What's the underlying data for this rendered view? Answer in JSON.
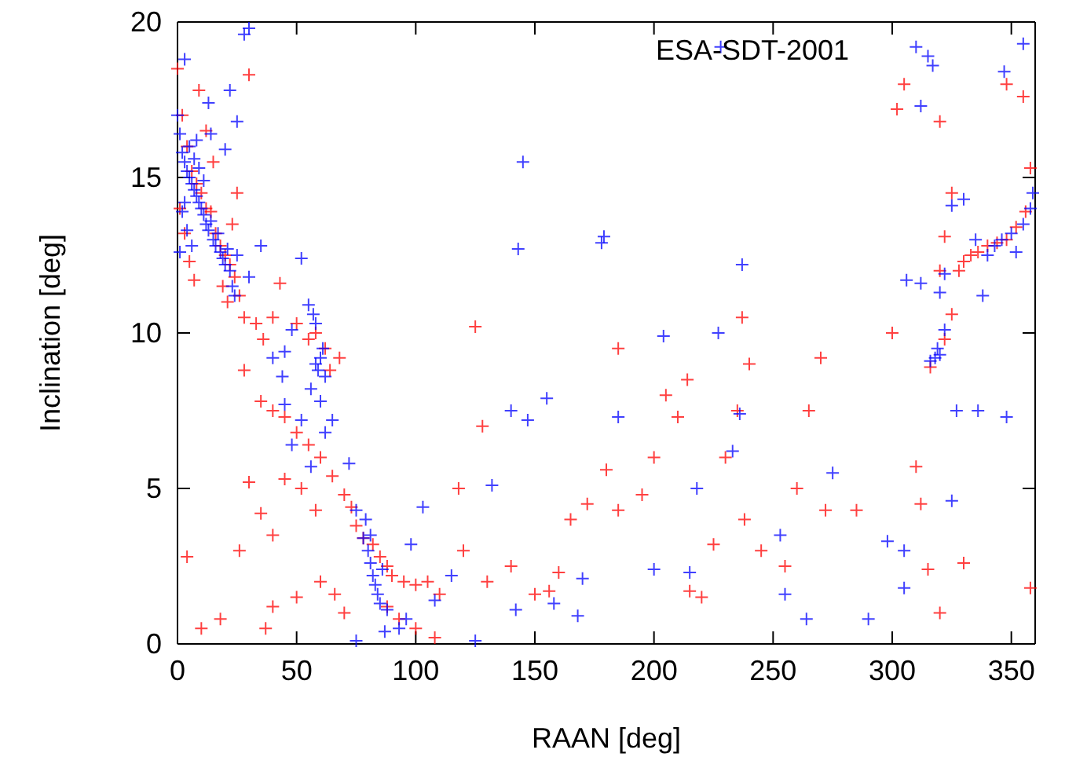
{
  "chart_data": {
    "type": "scatter",
    "xlabel": "RAAN [deg]",
    "ylabel": "Inclination [deg]",
    "xlim": [
      0,
      360
    ],
    "ylim": [
      0,
      20
    ],
    "xticks": [
      0,
      50,
      100,
      150,
      200,
      250,
      300,
      350
    ],
    "yticks": [
      0,
      5,
      10,
      15,
      20
    ],
    "grid": false,
    "marker": "cross",
    "annotations": [
      "ESA-SDT-2001"
    ],
    "series": [
      {
        "color": "#ff0000",
        "x": [
          0,
          2,
          4,
          6,
          8,
          10,
          12,
          14,
          16,
          18,
          20,
          22,
          24,
          26,
          23,
          21,
          19,
          1,
          3,
          5,
          7,
          9,
          12,
          30,
          15,
          25,
          28,
          33,
          36,
          40,
          43,
          50,
          55,
          64,
          62,
          58,
          68,
          28,
          35,
          40,
          45,
          50,
          55,
          60,
          65,
          70,
          73,
          75,
          78,
          82,
          85,
          88,
          90,
          95,
          100,
          105,
          110,
          88,
          93,
          100,
          108,
          30,
          35,
          40,
          45,
          52,
          58,
          26,
          40,
          37,
          60,
          66,
          50,
          4,
          18,
          10,
          70,
          118,
          120,
          125,
          128,
          130,
          140,
          150,
          156,
          160,
          165,
          172,
          180,
          185,
          195,
          200,
          205,
          210,
          214,
          215,
          220,
          225,
          230,
          235,
          237,
          240,
          238,
          245,
          255,
          260,
          265,
          270,
          272,
          285,
          300,
          305,
          302,
          310,
          312,
          315,
          320,
          320,
          322,
          325,
          328,
          330,
          333,
          336,
          340,
          344,
          348,
          352,
          356,
          358,
          355,
          348,
          320,
          358,
          330,
          322,
          325,
          316,
          185
        ],
        "values": [
          18.5,
          17,
          16,
          15.2,
          14.8,
          14.5,
          14,
          13.9,
          13.2,
          12.8,
          12.5,
          12.2,
          11.8,
          11.2,
          13.5,
          11,
          11.5,
          14,
          13.2,
          12.3,
          11.7,
          17.8,
          16.5,
          18.3,
          15.5,
          14.5,
          10.5,
          10.3,
          9.8,
          10.5,
          11.6,
          10.3,
          9.8,
          8.8,
          9.5,
          10,
          9.2,
          8.8,
          7.8,
          7.5,
          7.3,
          6.8,
          6.4,
          6,
          5.4,
          4.8,
          4.4,
          3.8,
          3.4,
          3.2,
          2.8,
          2.5,
          2.2,
          2,
          1.9,
          2,
          1.6,
          1.2,
          0.8,
          0.5,
          0.2,
          5.2,
          4.2,
          3.5,
          5.3,
          5,
          4.3,
          3,
          1.2,
          0.5,
          2,
          1.6,
          1.5,
          2.8,
          0.8,
          0.5,
          1,
          5,
          3,
          10.2,
          7,
          2,
          2.5,
          1.6,
          1.7,
          2.3,
          4,
          4.5,
          5.6,
          4.3,
          4.8,
          6,
          8,
          7.3,
          8.5,
          1.7,
          1.5,
          3.2,
          6,
          7.5,
          10.5,
          9,
          4,
          3,
          2.5,
          5,
          7.5,
          9.2,
          4.3,
          4.3,
          10,
          18,
          17.2,
          5.7,
          4.5,
          2.4,
          1,
          12,
          13.1,
          14.5,
          12,
          12.3,
          12.5,
          12.6,
          12.8,
          12.9,
          13,
          13.4,
          13.9,
          15.3,
          17.6,
          18,
          16.8,
          1.8,
          2.6,
          9.8,
          10.6,
          8.9,
          9.5
        ]
      },
      {
        "color": "#0000ff",
        "x": [
          0,
          1,
          2,
          3,
          4,
          5,
          6,
          7,
          8,
          9,
          10,
          11,
          12,
          13,
          14,
          15,
          16,
          17,
          18,
          19,
          20,
          21,
          22,
          23,
          24,
          25,
          3,
          5,
          7,
          9,
          11,
          2,
          4,
          6,
          8,
          13,
          14,
          3,
          1,
          22,
          25,
          28,
          30,
          20,
          35,
          40,
          30,
          45,
          48,
          55,
          57,
          52,
          58,
          59,
          60,
          61,
          62,
          56,
          58,
          60,
          52,
          48,
          45,
          44,
          62,
          56,
          65,
          72,
          75,
          78,
          80,
          81,
          82,
          83,
          84,
          85,
          81,
          79,
          86,
          88,
          87,
          93,
          96,
          75,
          125,
          108,
          98,
          103,
          115,
          132,
          145,
          143,
          147,
          140,
          155,
          142,
          158,
          170,
          168,
          178,
          179,
          185,
          200,
          204,
          228,
          237,
          236,
          215,
          218,
          227,
          233,
          253,
          255,
          264,
          290,
          298,
          305,
          310,
          312,
          315,
          317,
          320,
          318,
          316,
          319,
          322,
          322,
          330,
          335,
          338,
          340,
          343,
          346,
          350,
          352,
          355,
          358,
          359,
          347,
          355,
          320,
          325,
          327,
          336,
          348,
          306,
          312,
          325,
          305,
          275
        ],
        "values": [
          17,
          16.4,
          15.8,
          15.5,
          15.2,
          15,
          14.8,
          14.6,
          14.4,
          14.2,
          14,
          13.8,
          13.5,
          13.3,
          13.6,
          13,
          12.8,
          13.2,
          12.6,
          12.4,
          12.2,
          12.7,
          12,
          11.5,
          11.2,
          12.5,
          14.2,
          16,
          15.6,
          15.3,
          14.9,
          13.9,
          13.3,
          12.8,
          16.2,
          17.4,
          16.4,
          18.8,
          12.6,
          17.8,
          16.8,
          19.6,
          19.8,
          15.9,
          12.8,
          9.2,
          11.8,
          9.4,
          10.1,
          10.9,
          10.6,
          12.4,
          9,
          8.8,
          9.2,
          9.5,
          8.6,
          8.2,
          10.3,
          7.8,
          7.2,
          6.4,
          7.7,
          8.6,
          6.8,
          5.7,
          7.2,
          5.8,
          4.3,
          3.4,
          3,
          2.6,
          2.2,
          1.9,
          1.6,
          1.3,
          3.5,
          4,
          2.4,
          1.1,
          0.4,
          0.5,
          0.8,
          0.1,
          0.1,
          1.4,
          3.2,
          4.4,
          2.2,
          5.1,
          15.5,
          12.7,
          7.2,
          7.5,
          7.9,
          1.1,
          1.3,
          2.1,
          0.9,
          12.9,
          13.1,
          7.3,
          2.4,
          9.9,
          19.2,
          12.2,
          7.4,
          2.3,
          5,
          10,
          6.2,
          3.5,
          1.6,
          0.8,
          0.8,
          3.3,
          1.8,
          19.2,
          17.3,
          18.9,
          18.6,
          9.3,
          9.2,
          9.1,
          9.5,
          10.1,
          11.9,
          14.3,
          13,
          11.2,
          12.5,
          12.8,
          13,
          13.2,
          12.6,
          13.5,
          14,
          14.5,
          18.4,
          19.3,
          11.3,
          14.1,
          7.5,
          7.5,
          7.3,
          11.7,
          11.6,
          4.6,
          3,
          5.5
        ]
      }
    ]
  }
}
